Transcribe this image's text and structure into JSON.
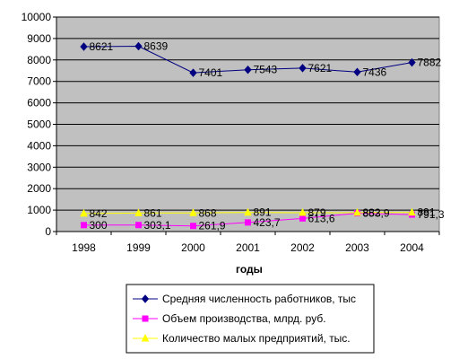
{
  "chart_data": {
    "type": "line",
    "title": "",
    "xlabel": "годы",
    "ylabel": "",
    "categories": [
      "1998",
      "1999",
      "2000",
      "2001",
      "2002",
      "2003",
      "2004"
    ],
    "ylim": [
      0,
      10000
    ],
    "yticks": [
      "0",
      "1000",
      "2000",
      "3000",
      "4000",
      "5000",
      "6000",
      "7000",
      "8000",
      "9000",
      "10000"
    ],
    "grid": true,
    "legend_position": "bottom",
    "plot_background": "#c0c0c0",
    "series": [
      {
        "name": "Средняя численность работников, тыс",
        "color": "#000080",
        "marker": "diamond",
        "values": [
          8621,
          8639,
          7401,
          7543,
          7621,
          7436,
          7882
        ],
        "labels": [
          "8621",
          "8639",
          "7401",
          "7543",
          "7621",
          "7436",
          "7882"
        ]
      },
      {
        "name": "Объем производства, млрд. руб.",
        "color": "#ff00ff",
        "marker": "square",
        "values": [
          300,
          303.1,
          261.9,
          423.7,
          613.6,
          853.9,
          791.3
        ],
        "labels": [
          "300",
          "303,1",
          "261,9",
          "423,7",
          "613,6",
          "853,9",
          "791,3"
        ]
      },
      {
        "name": "Количество малых предприятий, тыс.",
        "color": "#ffff00",
        "marker": "triangle",
        "values": [
          842,
          861,
          868,
          891,
          879,
          882,
          891
        ],
        "labels": [
          "842",
          "861",
          "868",
          "891",
          "879",
          "882",
          "891"
        ]
      }
    ]
  }
}
